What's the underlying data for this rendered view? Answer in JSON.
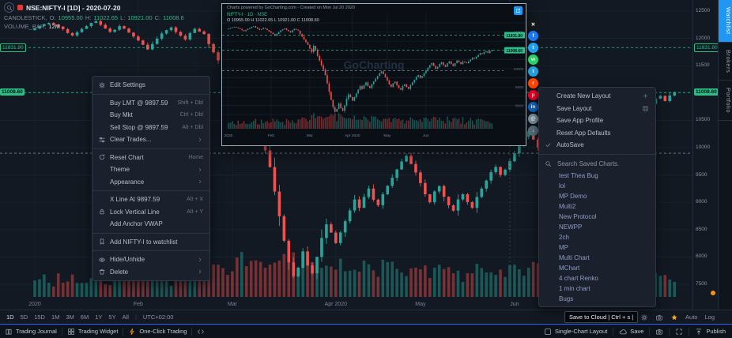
{
  "colors": {
    "accent": "#2196f3",
    "up": "#26a69a",
    "down": "#ef5350",
    "tag_green": "#2dbd85"
  },
  "header": {
    "symbol": "NSE:NIFTY-I [1D] - 2020-07-20",
    "series_label": "CANDLESTICK,",
    "o_label": "O:",
    "o": "10955.00",
    "h_label": "H:",
    "h": "11022.65",
    "l_label": "L:",
    "l": "10921.00",
    "c_label": "C:",
    "c": "11008.6",
    "volume_label": "VOLUME_BAR,",
    "volume_value": "12M"
  },
  "price_labels": {
    "upper": "11831.80",
    "lower": "11008.60"
  },
  "y_axis": [
    {
      "v": "12500"
    },
    {
      "v": "12000"
    },
    {
      "v": "11831.80",
      "hl": "outline"
    },
    {
      "v": "11500"
    },
    {
      "v": "11008.60",
      "hl": "fill"
    },
    {
      "v": "10500"
    },
    {
      "v": "10000"
    },
    {
      "v": "9500"
    },
    {
      "v": "9000"
    },
    {
      "v": "8500"
    },
    {
      "v": "8000"
    },
    {
      "v": "7500"
    }
  ],
  "right_tabs": [
    {
      "label": "Watchlist",
      "active": true
    },
    {
      "label": "Brokers",
      "active": false
    },
    {
      "label": "Portfolio",
      "active": false
    }
  ],
  "context_menu": {
    "sections": [
      {
        "items": [
          {
            "icon": "gear",
            "label": "Edit Settings"
          }
        ]
      },
      {
        "items": [
          {
            "label": "Buy LMT @ 9897.59",
            "shortcut": "Shift + Dbl"
          },
          {
            "label": "Buy Mkt",
            "shortcut": "Ctrl + Dbl"
          },
          {
            "label": "Sell Stop @ 9897.59",
            "shortcut": "Alt + Dbl"
          },
          {
            "icon": "sliders",
            "label": "Clear Trades...",
            "submenu": true
          }
        ]
      },
      {
        "items": [
          {
            "icon": "refresh",
            "label": "Reset Chart",
            "shortcut": "Home"
          },
          {
            "label": "Theme",
            "submenu": true
          },
          {
            "label": "Appearance",
            "submenu": true
          }
        ]
      },
      {
        "items": [
          {
            "label": "X Line At 9897.59",
            "shortcut": "Alt + X"
          },
          {
            "icon": "lock",
            "label": "Lock Vertical Line",
            "shortcut": "Alt + Y"
          },
          {
            "label": "Add Anchor VWAP"
          }
        ]
      },
      {
        "items": [
          {
            "icon": "bookmark",
            "label": "Add NIFTY-I to watchlist"
          }
        ]
      },
      {
        "items": [
          {
            "icon": "eye",
            "label": "Hide/Unhide",
            "submenu": true
          },
          {
            "icon": "trash",
            "label": "Delete",
            "submenu": true
          }
        ]
      }
    ]
  },
  "layout_menu": {
    "items": [
      {
        "label": "Create New Layout",
        "right_icon": "plus"
      },
      {
        "label": "Save Layout",
        "right_icon": "floppy"
      },
      {
        "label": "Save App Profile"
      },
      {
        "label": "Reset App Defaults"
      },
      {
        "label": "AutoSave",
        "left_icon": "check"
      }
    ],
    "search_placeholder": "Search Saved Charts.",
    "saved_charts": [
      "test Thea Bug",
      "lol",
      "MP Demo",
      "Multi2",
      "New Protocol",
      "NEWPP",
      "2ch",
      "MP",
      "Multi Chart",
      "MChart",
      "4 chart Renko",
      "1 min chart",
      "Bugs"
    ]
  },
  "preview": {
    "caption": "Charts powered by GoCharting.com - Created on Mon Jul 20 2020",
    "symbol_line": "NIFTY-I · 1D · NSE",
    "ohlc_line": "O 10955.00   H 11022.65   L 10921.00   C 11008.60",
    "watermark": "GoCharting",
    "share_icons": [
      {
        "name": "x",
        "color": "#14171a",
        "glyph": "✕"
      },
      {
        "name": "facebook",
        "color": "#1877f2",
        "glyph": "f"
      },
      {
        "name": "twitter",
        "color": "#1da1f2",
        "glyph": "t"
      },
      {
        "name": "whatsapp",
        "color": "#25d366",
        "glyph": "w"
      },
      {
        "name": "telegram",
        "color": "#229ed9",
        "glyph": "t"
      },
      {
        "name": "reddit",
        "color": "#ff4500",
        "glyph": "r"
      },
      {
        "name": "pinterest",
        "color": "#e60023",
        "glyph": "p"
      },
      {
        "name": "linkedin",
        "color": "#0a66c2",
        "glyph": "in"
      },
      {
        "name": "email",
        "color": "#78909c",
        "glyph": "@"
      },
      {
        "name": "download",
        "color": "#546e7a",
        "glyph": "↓"
      }
    ]
  },
  "timeframe_bar": {
    "timeframes": [
      "1D",
      "5D",
      "15D",
      "1M",
      "3M",
      "6M",
      "1Y",
      "5Y",
      "All"
    ],
    "timezone": "UTC+02:00",
    "right_icons": [
      "gear",
      "camera",
      "star"
    ],
    "auto_label": "Auto",
    "log_label": "Log"
  },
  "status_bar": {
    "left": [
      {
        "icon": "book",
        "label": "Trading Journal"
      },
      {
        "icon": "widget",
        "label": "Trading Widget"
      },
      {
        "icon": "bolt",
        "label": "One-Click Trading",
        "icon_color": "#ff9800"
      },
      {
        "icon": "code",
        "label": ""
      }
    ],
    "right": [
      {
        "icon": "grid1",
        "label": "Single-Chart Layout"
      },
      {
        "icon": "cloud",
        "label": "Save"
      },
      {
        "icon": "camera",
        "label": ""
      },
      {
        "icon": "expand",
        "label": ""
      },
      {
        "icon": "publish",
        "label": "Publish"
      }
    ]
  },
  "tooltip": "Save to Cloud | Ctrl + s |",
  "chart_data": {
    "type": "candlestick",
    "symbol": "NSE:NIFTY-I",
    "interval": "1D",
    "price_range": [
      7500,
      12500
    ],
    "y_ticks": [
      12500,
      12000,
      11500,
      11000,
      10500,
      10000,
      9500,
      9000,
      8500,
      8000,
      7500
    ],
    "levels": [
      {
        "price": 11831.8,
        "color": "#2dbd85",
        "tag": "11831.80"
      },
      {
        "price": 11008.6,
        "color": "#2dbd85",
        "tag": "11008.60"
      },
      {
        "price": 9897.59,
        "color": "#7d8899"
      }
    ],
    "vline_index": 101,
    "first_open": 12150,
    "x_labels": [
      {
        "label": "2020",
        "i": 0
      },
      {
        "label": "Feb",
        "i": 22
      },
      {
        "label": "Mar",
        "i": 42
      },
      {
        "label": "Apr 2020",
        "i": 64
      },
      {
        "label": "May",
        "i": 82
      },
      {
        "label": "Jun",
        "i": 102
      }
    ],
    "closes": [
      12182,
      12226,
      12261,
      12283,
      12254,
      12216,
      12169,
      12098,
      12052,
      12113,
      12174,
      12224,
      12282,
      12316,
      12248,
      12180,
      12119,
      12157,
      12224,
      12180,
      12106,
      12035,
      11962,
      11883,
      11798,
      11897,
      11995,
      12089,
      12151,
      12201,
      12119,
      12048,
      11981,
      12098,
      12174,
      12126,
      12080,
      11896,
      11745,
      11598,
      11446,
      11302,
      11096,
      10898,
      11251,
      10989,
      10698,
      10451,
      10195,
      9951,
      9645,
      9197,
      8745,
      8297,
      7901,
      7646,
      7804,
      8102,
      7848,
      7702,
      8001,
      8348,
      8597,
      8446,
      8254,
      8449,
      8654,
      8851,
      9052,
      8899,
      9098,
      9252,
      9049,
      8947,
      9148,
      9302,
      9449,
      9602,
      9748,
      9852,
      9702,
      9546,
      9352,
      9148,
      9002,
      9199,
      9298,
      9102,
      8946,
      8848,
      9052,
      9148,
      9004,
      8899,
      9098,
      9251,
      9398,
      9552,
      9648,
      9501,
      9598,
      9752,
      9898,
      10052,
      10198,
      10302,
      10148,
      10002,
      10098,
      10249,
      10348,
      10201,
      10102,
      10298,
      10398,
      10252,
      10148,
      10302,
      10448,
      10348,
      10252,
      10398,
      10352,
      10302,
      10398,
      10502,
      10598,
      10552,
      10648,
      10748,
      10848,
      10802,
      10898,
      10948,
      10852,
      10955,
      11008.6
    ]
  }
}
